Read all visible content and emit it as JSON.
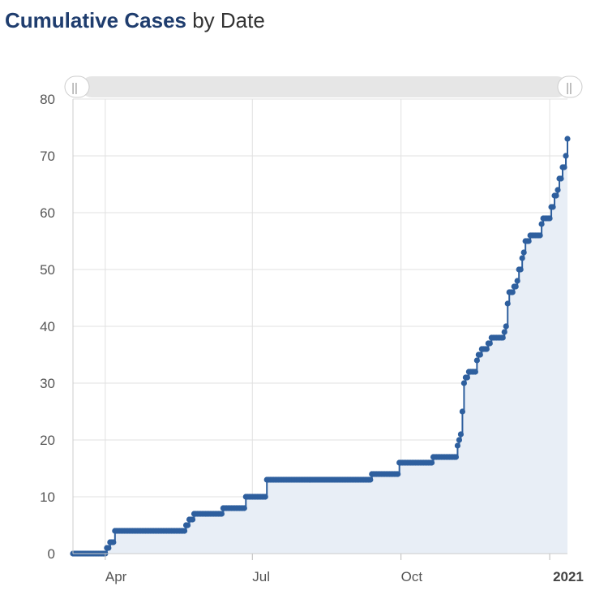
{
  "title": {
    "main": "Cumulative Cases",
    "suffix": " by Date"
  },
  "colors": {
    "line": "#2e5f9e",
    "area": "#e8eef6",
    "grid": "#e1e1e1",
    "title": "#1f3d6e",
    "scrollbar": "#e6e6e6"
  },
  "navigator": {
    "left_handle": "||",
    "right_handle": "||"
  },
  "chart_data": {
    "type": "area",
    "xlabel": "",
    "ylabel": "",
    "ylim": [
      0,
      80
    ],
    "xlim": [
      "2020-03-12",
      "2021-01-12"
    ],
    "grid": true,
    "y_ticks": [
      0,
      10,
      20,
      30,
      40,
      50,
      60,
      70,
      80
    ],
    "x_ticks": [
      {
        "date": "2020-04-01",
        "label": "Apr",
        "strong": false
      },
      {
        "date": "2020-07-01",
        "label": "Jul",
        "strong": false
      },
      {
        "date": "2020-10-01",
        "label": "Oct",
        "strong": false
      },
      {
        "date": "2021-01-01",
        "label": "2021",
        "strong": true
      }
    ],
    "series": [
      {
        "step_points": [
          [
            "2020-03-12",
            0
          ],
          [
            "2020-04-02",
            1
          ],
          [
            "2020-04-04",
            2
          ],
          [
            "2020-04-07",
            4
          ],
          [
            "2020-05-21",
            5
          ],
          [
            "2020-05-23",
            6
          ],
          [
            "2020-05-26",
            7
          ],
          [
            "2020-06-13",
            8
          ],
          [
            "2020-06-27",
            10
          ],
          [
            "2020-07-10",
            13
          ],
          [
            "2020-09-13",
            14
          ],
          [
            "2020-09-30",
            16
          ],
          [
            "2020-10-21",
            17
          ],
          [
            "2020-11-05",
            19
          ],
          [
            "2020-11-06",
            20
          ],
          [
            "2020-11-07",
            21
          ],
          [
            "2020-11-08",
            25
          ],
          [
            "2020-11-09",
            30
          ],
          [
            "2020-11-10",
            31
          ],
          [
            "2020-11-12",
            32
          ],
          [
            "2020-11-17",
            34
          ],
          [
            "2020-11-18",
            35
          ],
          [
            "2020-11-20",
            36
          ],
          [
            "2020-11-24",
            37
          ],
          [
            "2020-11-26",
            38
          ],
          [
            "2020-12-04",
            39
          ],
          [
            "2020-12-05",
            40
          ],
          [
            "2020-12-06",
            44
          ],
          [
            "2020-12-07",
            46
          ],
          [
            "2020-12-10",
            47
          ],
          [
            "2020-12-12",
            48
          ],
          [
            "2020-12-13",
            50
          ],
          [
            "2020-12-15",
            52
          ],
          [
            "2020-12-16",
            53
          ],
          [
            "2020-12-17",
            55
          ],
          [
            "2020-12-20",
            56
          ],
          [
            "2020-12-27",
            58
          ],
          [
            "2020-12-28",
            59
          ],
          [
            "2021-01-02",
            61
          ],
          [
            "2021-01-04",
            63
          ],
          [
            "2021-01-06",
            64
          ],
          [
            "2021-01-07",
            66
          ],
          [
            "2021-01-09",
            68
          ],
          [
            "2021-01-11",
            70
          ],
          [
            "2021-01-12",
            73
          ]
        ]
      }
    ]
  }
}
